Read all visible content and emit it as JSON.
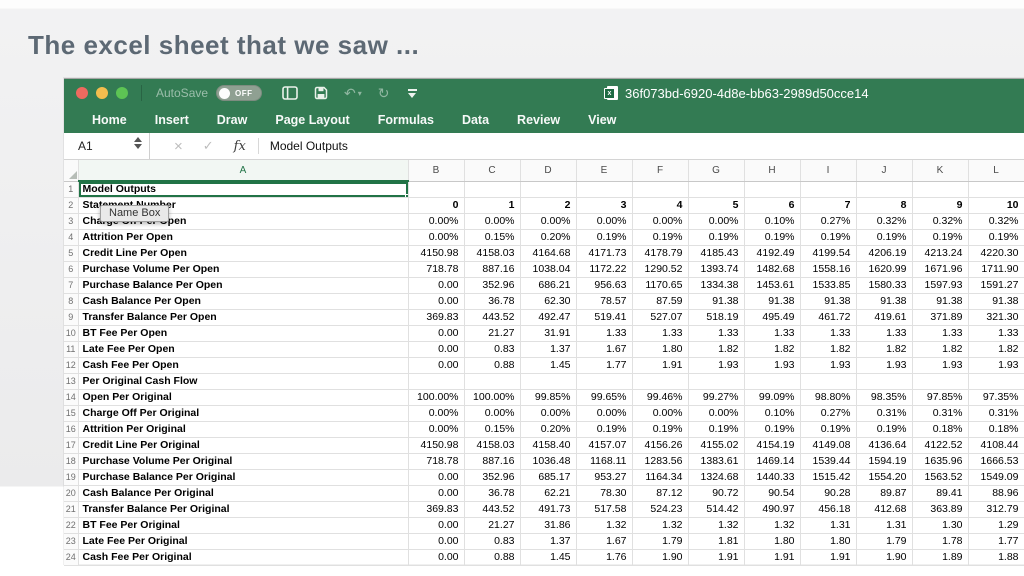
{
  "slide": {
    "title": "The excel sheet that we saw ..."
  },
  "window": {
    "titlebar": {
      "autosave_label": "AutoSave",
      "autosave_state": "OFF",
      "document_title": "36f073bd-6920-4d8e-bb63-2989d50cce14"
    },
    "ribbon_tabs": [
      "Home",
      "Insert",
      "Draw",
      "Page Layout",
      "Formulas",
      "Data",
      "Review",
      "View"
    ],
    "formula_bar": {
      "cell_ref": "A1",
      "tooltip": "Name Box",
      "fx_label": "fx",
      "cancel_glyph": "×",
      "confirm_glyph": "✓",
      "formula": "Model Outputs"
    },
    "icons": {
      "undo_glyph": "↶",
      "redo_glyph": "↻",
      "caret_glyph": "▾"
    }
  },
  "colors": {
    "excel_green": "#217346",
    "titlebar_green": "#337b53",
    "selection_border": "#217346",
    "traffic_red": "#ee6a5f",
    "traffic_yellow": "#f4bd4e",
    "traffic_green": "#5dc454",
    "slide_title_text": "#5d6974"
  },
  "sheet": {
    "column_headers": [
      "A",
      "B",
      "C",
      "D",
      "E",
      "F",
      "G",
      "H",
      "I",
      "J",
      "K",
      "L"
    ],
    "selected": {
      "cell_ref": "A1"
    },
    "rows": [
      {
        "num": 1,
        "label": "Model Outputs",
        "selected": true,
        "values": []
      },
      {
        "num": 2,
        "label": "Statement Number",
        "bold_values": true,
        "values": [
          "0",
          "1",
          "2",
          "3",
          "4",
          "5",
          "6",
          "7",
          "8",
          "9",
          "10"
        ]
      },
      {
        "num": 3,
        "label": "Charge Off Per Open",
        "values": [
          "0.00%",
          "0.00%",
          "0.00%",
          "0.00%",
          "0.00%",
          "0.00%",
          "0.10%",
          "0.27%",
          "0.32%",
          "0.32%",
          "0.32%"
        ]
      },
      {
        "num": 4,
        "label": "Attrition Per Open",
        "values": [
          "0.00%",
          "0.15%",
          "0.20%",
          "0.19%",
          "0.19%",
          "0.19%",
          "0.19%",
          "0.19%",
          "0.19%",
          "0.19%",
          "0.19%"
        ]
      },
      {
        "num": 5,
        "label": "Credit Line Per Open",
        "values": [
          "4150.98",
          "4158.03",
          "4164.68",
          "4171.73",
          "4178.79",
          "4185.43",
          "4192.49",
          "4199.54",
          "4206.19",
          "4213.24",
          "4220.30"
        ]
      },
      {
        "num": 6,
        "label": "Purchase Volume Per Open",
        "values": [
          "718.78",
          "887.16",
          "1038.04",
          "1172.22",
          "1290.52",
          "1393.74",
          "1482.68",
          "1558.16",
          "1620.99",
          "1671.96",
          "1711.90"
        ]
      },
      {
        "num": 7,
        "label": "Purchase Balance Per Open",
        "values": [
          "0.00",
          "352.96",
          "686.21",
          "956.63",
          "1170.65",
          "1334.38",
          "1453.61",
          "1533.85",
          "1580.33",
          "1597.93",
          "1591.27"
        ]
      },
      {
        "num": 8,
        "label": "Cash Balance Per Open",
        "values": [
          "0.00",
          "36.78",
          "62.30",
          "78.57",
          "87.59",
          "91.38",
          "91.38",
          "91.38",
          "91.38",
          "91.38",
          "91.38"
        ]
      },
      {
        "num": 9,
        "label": "Transfer Balance Per Open",
        "values": [
          "369.83",
          "443.52",
          "492.47",
          "519.41",
          "527.07",
          "518.19",
          "495.49",
          "461.72",
          "419.61",
          "371.89",
          "321.30"
        ]
      },
      {
        "num": 10,
        "label": "BT Fee Per Open",
        "values": [
          "0.00",
          "21.27",
          "31.91",
          "1.33",
          "1.33",
          "1.33",
          "1.33",
          "1.33",
          "1.33",
          "1.33",
          "1.33"
        ]
      },
      {
        "num": 11,
        "label": "Late Fee Per Open",
        "values": [
          "0.00",
          "0.83",
          "1.37",
          "1.67",
          "1.80",
          "1.82",
          "1.82",
          "1.82",
          "1.82",
          "1.82",
          "1.82"
        ]
      },
      {
        "num": 12,
        "label": "Cash Fee Per Open",
        "values": [
          "0.00",
          "0.88",
          "1.45",
          "1.77",
          "1.91",
          "1.93",
          "1.93",
          "1.93",
          "1.93",
          "1.93",
          "1.93"
        ]
      },
      {
        "num": 13,
        "label": "Per Original Cash Flow",
        "values": []
      },
      {
        "num": 14,
        "label": "Open Per Original",
        "values": [
          "100.00%",
          "100.00%",
          "99.85%",
          "99.65%",
          "99.46%",
          "99.27%",
          "99.09%",
          "98.80%",
          "98.35%",
          "97.85%",
          "97.35%"
        ]
      },
      {
        "num": 15,
        "label": "Charge Off Per Original",
        "values": [
          "0.00%",
          "0.00%",
          "0.00%",
          "0.00%",
          "0.00%",
          "0.00%",
          "0.10%",
          "0.27%",
          "0.31%",
          "0.31%",
          "0.31%"
        ]
      },
      {
        "num": 16,
        "label": "Attrition Per Original",
        "values": [
          "0.00%",
          "0.15%",
          "0.20%",
          "0.19%",
          "0.19%",
          "0.19%",
          "0.19%",
          "0.19%",
          "0.19%",
          "0.18%",
          "0.18%"
        ]
      },
      {
        "num": 17,
        "label": "Credit Line Per Original",
        "values": [
          "4150.98",
          "4158.03",
          "4158.40",
          "4157.07",
          "4156.26",
          "4155.02",
          "4154.19",
          "4149.08",
          "4136.64",
          "4122.52",
          "4108.44"
        ]
      },
      {
        "num": 18,
        "label": "Purchase Volume Per Original",
        "values": [
          "718.78",
          "887.16",
          "1036.48",
          "1168.11",
          "1283.56",
          "1383.61",
          "1469.14",
          "1539.44",
          "1594.19",
          "1635.96",
          "1666.53"
        ]
      },
      {
        "num": 19,
        "label": "Purchase Balance Per Original",
        "values": [
          "0.00",
          "352.96",
          "685.17",
          "953.27",
          "1164.34",
          "1324.68",
          "1440.33",
          "1515.42",
          "1554.20",
          "1563.52",
          "1549.09"
        ]
      },
      {
        "num": 20,
        "label": "Cash Balance Per Original",
        "values": [
          "0.00",
          "36.78",
          "62.21",
          "78.30",
          "87.12",
          "90.72",
          "90.54",
          "90.28",
          "89.87",
          "89.41",
          "88.96"
        ]
      },
      {
        "num": 21,
        "label": "Transfer Balance Per Original",
        "values": [
          "369.83",
          "443.52",
          "491.73",
          "517.58",
          "524.23",
          "514.42",
          "490.97",
          "456.18",
          "412.68",
          "363.89",
          "312.79"
        ]
      },
      {
        "num": 22,
        "label": "BT Fee Per Original",
        "values": [
          "0.00",
          "21.27",
          "31.86",
          "1.32",
          "1.32",
          "1.32",
          "1.32",
          "1.31",
          "1.31",
          "1.30",
          "1.29"
        ]
      },
      {
        "num": 23,
        "label": "Late Fee Per Original",
        "values": [
          "0.00",
          "0.83",
          "1.37",
          "1.67",
          "1.79",
          "1.81",
          "1.80",
          "1.80",
          "1.79",
          "1.78",
          "1.77"
        ]
      },
      {
        "num": 24,
        "label": "Cash Fee Per Original",
        "values": [
          "0.00",
          "0.88",
          "1.45",
          "1.76",
          "1.90",
          "1.91",
          "1.91",
          "1.91",
          "1.90",
          "1.89",
          "1.88"
        ]
      }
    ]
  }
}
